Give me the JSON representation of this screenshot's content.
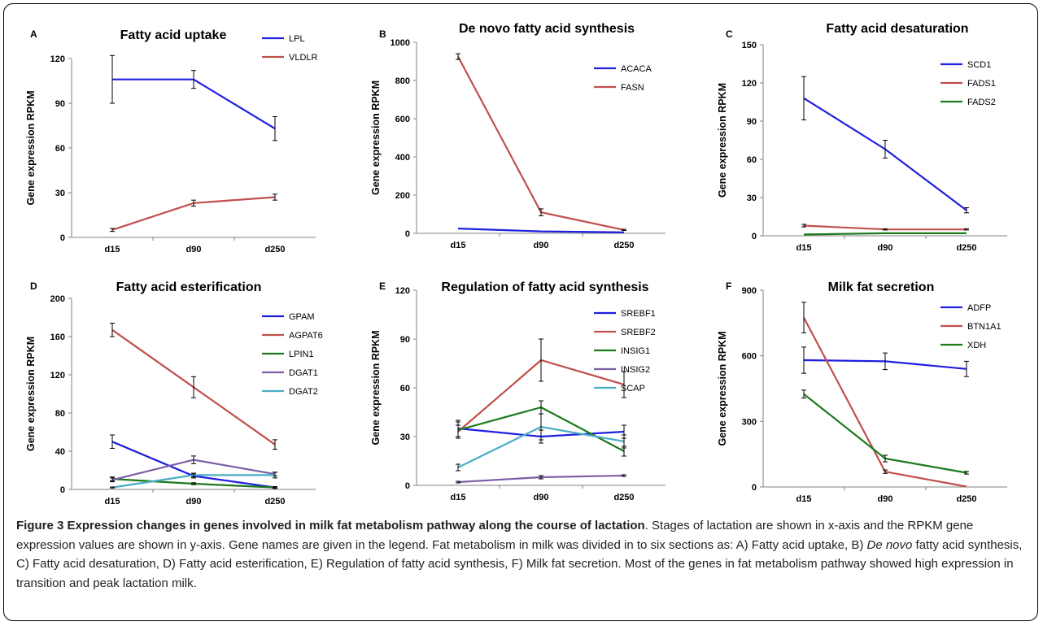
{
  "caption": {
    "figure_label": "Figure 3",
    "bold_title": "Expression changes in genes involved in milk fat metabolism pathway along the course of lactation",
    "part1": ". Stages of lactation are shown in x-axis and the RPKM gene expression values are shown in y-axis. Gene names are given in the legend. Fat metabolism in milk was divided in to six sections as: A) Fatty acid uptake, B) ",
    "italic": "De novo",
    "part2": " fatty acid synthesis, C) Fatty acid desaturation, D) Fatty acid esterification, E) Regulation of fatty acid synthesis, F) Milk fat secretion. Most of the genes in fat metabolism pathway showed high expression in transition and peak lactation milk."
  },
  "colors": {
    "blue": "#1f1fe0",
    "red": "#c0504d",
    "green": "#1a7a1a",
    "purple": "#7b5ea7",
    "cyan": "#4bacc6",
    "axis": "#808080"
  },
  "chart_data": [
    {
      "panel": "A",
      "type": "line",
      "title": "Fatty acid uptake",
      "ylabel": "Gene expression RPKM",
      "xlabel": "",
      "categories": [
        "d15",
        "d90",
        "d250"
      ],
      "ylim": [
        0,
        120
      ],
      "yticks": [
        0,
        30,
        60,
        90,
        120
      ],
      "series": [
        {
          "name": "LPL",
          "color": "blue",
          "values": [
            106,
            106,
            73
          ],
          "errors": [
            16,
            6,
            8
          ]
        },
        {
          "name": "VLDLR",
          "color": "red",
          "values": [
            5,
            23,
            27
          ],
          "errors": [
            1,
            2,
            2
          ]
        }
      ]
    },
    {
      "panel": "B",
      "type": "line",
      "title": "De novo fatty acid synthesis",
      "ylabel": "Gene expression RPKM",
      "xlabel": "",
      "categories": [
        "d15",
        "d90",
        "d250"
      ],
      "ylim": [
        0,
        1000
      ],
      "yticks": [
        0,
        200,
        400,
        600,
        800,
        1000
      ],
      "series": [
        {
          "name": "ACACA",
          "color": "blue",
          "values": [
            25,
            10,
            5
          ],
          "errors": [
            0,
            0,
            0
          ]
        },
        {
          "name": "FASN",
          "color": "red",
          "values": [
            925,
            110,
            18
          ],
          "errors": [
            15,
            18,
            3
          ]
        }
      ]
    },
    {
      "panel": "C",
      "type": "line",
      "title": "Fatty acid desaturation",
      "ylabel": "Gene expression RPKM",
      "xlabel": "",
      "categories": [
        "d15",
        "d90",
        "d250"
      ],
      "ylim": [
        0,
        150
      ],
      "yticks": [
        0,
        30,
        60,
        90,
        120,
        150
      ],
      "series": [
        {
          "name": "SCD1",
          "color": "blue",
          "values": [
            108,
            68,
            20
          ],
          "errors": [
            17,
            7,
            2
          ]
        },
        {
          "name": "FADS1",
          "color": "red",
          "values": [
            8,
            5,
            5
          ],
          "errors": [
            1,
            0.5,
            0.5
          ]
        },
        {
          "name": "FADS2",
          "color": "green",
          "values": [
            1,
            2,
            2
          ],
          "errors": [
            0,
            0,
            0
          ]
        }
      ]
    },
    {
      "panel": "D",
      "type": "line",
      "title": "Fatty acid esterification",
      "ylabel": "Gene expression RPKM",
      "xlabel": "",
      "categories": [
        "d15",
        "d90",
        "d250"
      ],
      "ylim": [
        0,
        200
      ],
      "yticks": [
        0,
        40,
        80,
        120,
        160,
        200
      ],
      "series": [
        {
          "name": "GPAM",
          "color": "blue",
          "values": [
            50,
            14,
            2
          ],
          "errors": [
            7,
            2,
            1
          ]
        },
        {
          "name": "AGPAT6",
          "color": "red",
          "values": [
            167,
            107,
            47
          ],
          "errors": [
            7,
            11,
            5
          ]
        },
        {
          "name": "LPIN1",
          "color": "green",
          "values": [
            11,
            6,
            2
          ],
          "errors": [
            2,
            1,
            0.5
          ]
        },
        {
          "name": "DGAT1",
          "color": "purple",
          "values": [
            10,
            31,
            16
          ],
          "errors": [
            2,
            4,
            2
          ]
        },
        {
          "name": "DGAT2",
          "color": "cyan",
          "values": [
            2,
            15,
            15
          ],
          "errors": [
            0.5,
            2,
            3
          ]
        }
      ]
    },
    {
      "panel": "E",
      "type": "line",
      "title": "Regulation of fatty acid synthesis",
      "ylabel": "Gene expression RPKM",
      "xlabel": "",
      "categories": [
        "d15",
        "d90",
        "d250"
      ],
      "ylim": [
        0,
        120
      ],
      "yticks": [
        0,
        30,
        60,
        90,
        120
      ],
      "series": [
        {
          "name": "SREBF1",
          "color": "blue",
          "values": [
            35,
            30,
            33
          ],
          "errors": [
            5,
            4,
            4
          ]
        },
        {
          "name": "SREBF2",
          "color": "red",
          "values": [
            33,
            77,
            62
          ],
          "errors": [
            4,
            13,
            8
          ]
        },
        {
          "name": "INSIG1",
          "color": "green",
          "values": [
            34,
            48,
            21
          ],
          "errors": [
            5,
            4,
            3
          ]
        },
        {
          "name": "INSIG2",
          "color": "purple",
          "values": [
            2,
            5,
            6
          ],
          "errors": [
            0.5,
            1,
            0.5
          ]
        },
        {
          "name": "SCAP",
          "color": "cyan",
          "values": [
            11,
            36,
            27
          ],
          "errors": [
            2,
            8,
            4
          ]
        }
      ]
    },
    {
      "panel": "F",
      "type": "line",
      "title": "Milk fat secretion",
      "ylabel": "Gene expression RPKM",
      "xlabel": "",
      "categories": [
        "d15",
        "d90",
        "d250"
      ],
      "ylim": [
        0,
        900
      ],
      "yticks": [
        0,
        300,
        600,
        900
      ],
      "series": [
        {
          "name": "ADFP",
          "color": "blue",
          "values": [
            580,
            575,
            540
          ],
          "errors": [
            60,
            38,
            35
          ]
        },
        {
          "name": "BTN1A1",
          "color": "red",
          "values": [
            775,
            70,
            2
          ],
          "errors": [
            70,
            8,
            0
          ]
        },
        {
          "name": "XDH",
          "color": "green",
          "values": [
            425,
            130,
            65
          ],
          "errors": [
            18,
            15,
            6
          ]
        }
      ]
    }
  ]
}
